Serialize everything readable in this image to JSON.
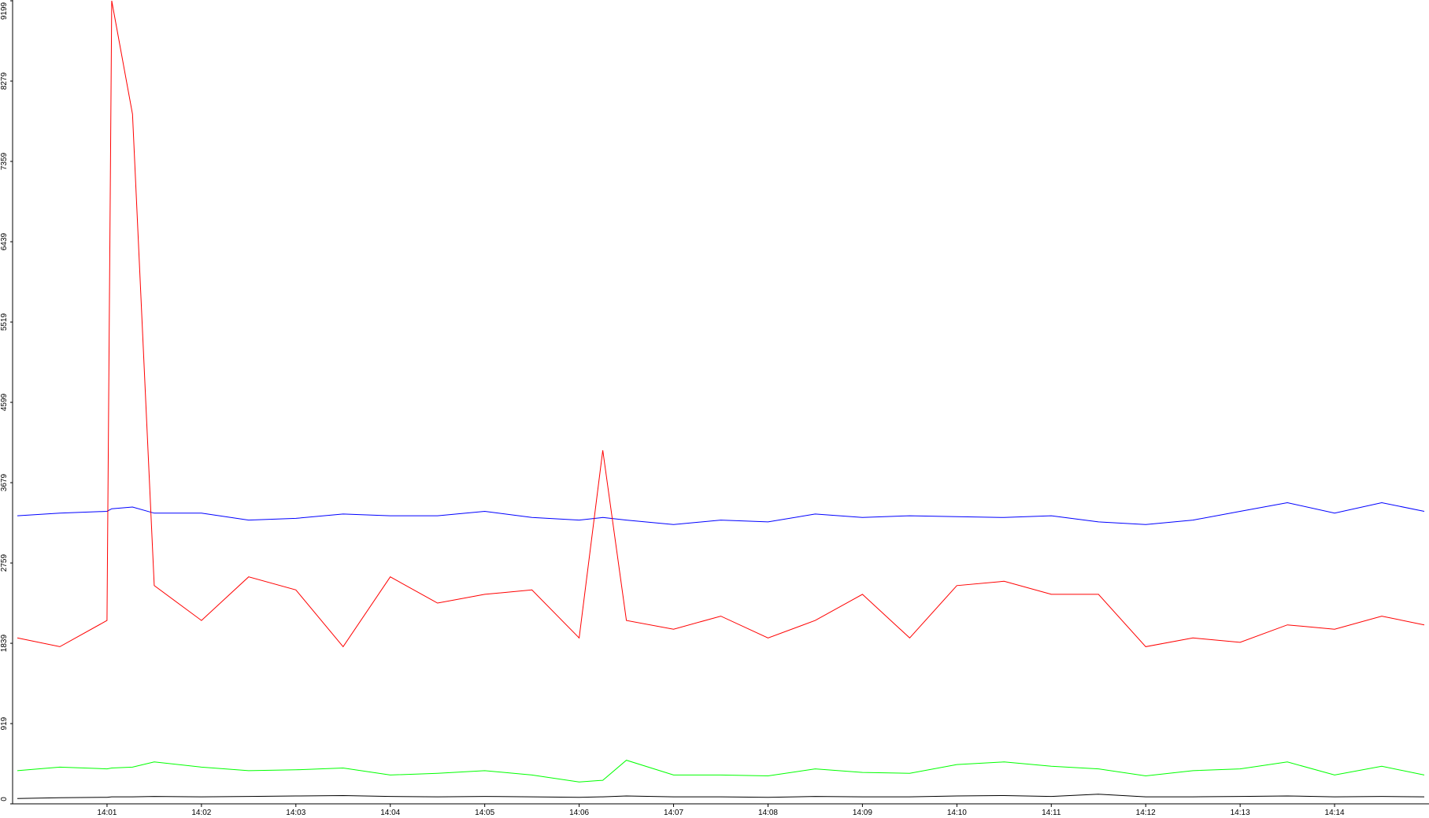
{
  "chart_data": {
    "type": "line",
    "x": [
      840.05,
      840.5,
      841,
      841.05,
      841.27,
      841.5,
      842,
      842.5,
      843,
      843.5,
      844,
      844.5,
      845,
      845.5,
      846,
      846.25,
      846.5,
      847,
      847.5,
      848,
      848.5,
      849,
      849.5,
      850,
      850.5,
      851,
      851.5,
      852,
      852.5,
      853,
      853.5,
      854,
      854.5,
      854.95
    ],
    "xlim": [
      840,
      855
    ],
    "xticks": [
      {
        "value": 841,
        "label": "14:01"
      },
      {
        "value": 842,
        "label": "14:02"
      },
      {
        "value": 843,
        "label": "14:03"
      },
      {
        "value": 844,
        "label": "14:04"
      },
      {
        "value": 845,
        "label": "14:05"
      },
      {
        "value": 846,
        "label": "14:06"
      },
      {
        "value": 847,
        "label": "14:07"
      },
      {
        "value": 848,
        "label": "14:08"
      },
      {
        "value": 849,
        "label": "14:09"
      },
      {
        "value": 850,
        "label": "14:10"
      },
      {
        "value": 851,
        "label": "14:11"
      },
      {
        "value": 852,
        "label": "14:12"
      },
      {
        "value": 853,
        "label": "14:13"
      },
      {
        "value": 854,
        "label": "14:14"
      }
    ],
    "ylim": [
      0,
      9199
    ],
    "yticks": [
      0,
      919,
      1839,
      2759,
      3679,
      4599,
      5519,
      6439,
      7359,
      8279,
      9199
    ],
    "series": [
      {
        "color": "#0000ff",
        "values": [
          3300,
          3330,
          3350,
          3380,
          3400,
          3330,
          3330,
          3250,
          3270,
          3320,
          3300,
          3300,
          3350,
          3280,
          3250,
          3280,
          3250,
          3200,
          3250,
          3230,
          3320,
          3280,
          3300,
          3290,
          3280,
          3300,
          3230,
          3200,
          3250,
          3350,
          3450,
          3330,
          3450,
          3350
        ]
      },
      {
        "color": "#ff0000",
        "values": [
          1900,
          1800,
          2100,
          9199,
          7900,
          2500,
          2100,
          2600,
          2450,
          1800,
          2600,
          2300,
          2400,
          2450,
          1900,
          4050,
          2100,
          2000,
          2150,
          1900,
          2100,
          2400,
          1900,
          2500,
          2550,
          2400,
          2400,
          1800,
          1900,
          1850,
          2050,
          2000,
          2150,
          2050
        ]
      },
      {
        "color": "#00ff00",
        "values": [
          380,
          420,
          400,
          410,
          420,
          480,
          420,
          380,
          390,
          410,
          330,
          350,
          380,
          330,
          250,
          270,
          500,
          330,
          330,
          320,
          400,
          360,
          350,
          450,
          480,
          430,
          400,
          320,
          380,
          400,
          480,
          330,
          430,
          330
        ]
      },
      {
        "color": "#000000",
        "values": [
          60,
          70,
          75,
          80,
          80,
          85,
          80,
          85,
          90,
          95,
          85,
          80,
          85,
          80,
          75,
          80,
          90,
          80,
          80,
          75,
          85,
          80,
          80,
          90,
          95,
          85,
          110,
          80,
          80,
          85,
          90,
          80,
          85,
          80
        ]
      }
    ]
  }
}
